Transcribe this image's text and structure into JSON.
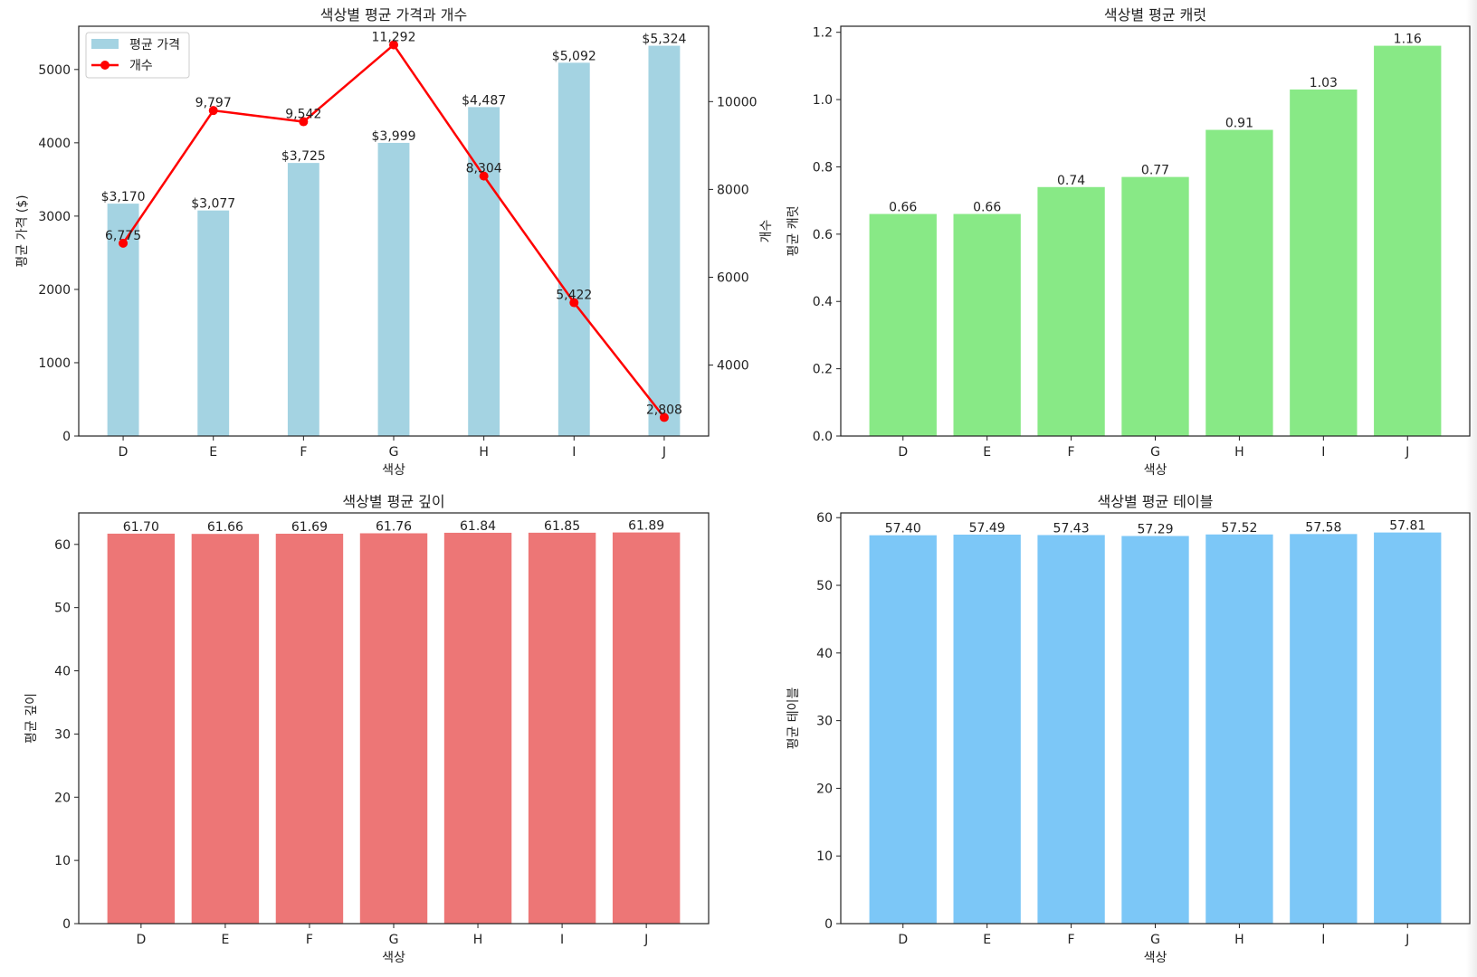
{
  "chart_data": [
    {
      "type": "bar+line",
      "title": "색상별 평균 가격과 개수",
      "xlabel": "색상",
      "ylabel": "평균 가격 ($)",
      "y2label": "개수",
      "categories": [
        "D",
        "E",
        "F",
        "G",
        "H",
        "I",
        "J"
      ],
      "series": [
        {
          "name": "평균 가격",
          "type": "bar",
          "axis": "left",
          "color": "#a4d3e2",
          "values": [
            3170,
            3077,
            3725,
            3999,
            4487,
            5092,
            5324
          ],
          "labels": [
            "$3,170",
            "$3,077",
            "$3,725",
            "$3,999",
            "$4,487",
            "$5,092",
            "$5,324"
          ]
        },
        {
          "name": "개수",
          "type": "line",
          "axis": "right",
          "color": "#ff0000",
          "marker": "circle",
          "values": [
            6775,
            9797,
            9542,
            11292,
            8304,
            5422,
            2808
          ],
          "labels": [
            "6,775",
            "9,797",
            "9,542",
            "11,292",
            "8,304",
            "5,422",
            "2,808"
          ]
        }
      ],
      "ylim": [
        0,
        5590
      ],
      "yticks": [
        0,
        1000,
        2000,
        3000,
        4000,
        5000
      ],
      "y2lim": [
        2384,
        11716
      ],
      "y2ticks": [
        4000,
        6000,
        8000,
        10000
      ],
      "legend": "top-left",
      "grid": false
    },
    {
      "type": "bar",
      "title": "색상별 평균 캐럿",
      "xlabel": "색상",
      "ylabel": "평균 캐럿",
      "categories": [
        "D",
        "E",
        "F",
        "G",
        "H",
        "I",
        "J"
      ],
      "values": [
        0.66,
        0.66,
        0.74,
        0.77,
        0.91,
        1.03,
        1.16
      ],
      "labels": [
        "0.66",
        "0.66",
        "0.74",
        "0.77",
        "0.91",
        "1.03",
        "1.16"
      ],
      "color": "#88e986",
      "ylim": [
        0,
        1.218
      ],
      "yticks": [
        0.0,
        0.2,
        0.4,
        0.6,
        0.8,
        1.0,
        1.2
      ],
      "ytick_labels": [
        "0.0",
        "0.2",
        "0.4",
        "0.6",
        "0.8",
        "1.0",
        "1.2"
      ],
      "grid": false
    },
    {
      "type": "bar",
      "title": "색상별 평균 깊이",
      "xlabel": "색상",
      "ylabel": "평균 깊이",
      "categories": [
        "D",
        "E",
        "F",
        "G",
        "H",
        "I",
        "J"
      ],
      "values": [
        61.7,
        61.66,
        61.69,
        61.76,
        61.84,
        61.85,
        61.89
      ],
      "labels": [
        "61.70",
        "61.66",
        "61.69",
        "61.76",
        "61.84",
        "61.85",
        "61.89"
      ],
      "color": "#ed7676",
      "ylim": [
        0,
        64.98
      ],
      "yticks": [
        0,
        10,
        20,
        30,
        40,
        50,
        60
      ],
      "grid": false
    },
    {
      "type": "bar",
      "title": "색상별 평균 테이블",
      "xlabel": "색상",
      "ylabel": "평균 테이블",
      "categories": [
        "D",
        "E",
        "F",
        "G",
        "H",
        "I",
        "J"
      ],
      "values": [
        57.4,
        57.49,
        57.43,
        57.29,
        57.52,
        57.58,
        57.81
      ],
      "labels": [
        "57.40",
        "57.49",
        "57.43",
        "57.29",
        "57.52",
        "57.58",
        "57.81"
      ],
      "color": "#7cc7f7",
      "ylim": [
        0,
        60.7
      ],
      "yticks": [
        0,
        10,
        20,
        30,
        40,
        50,
        60
      ],
      "grid": false
    }
  ]
}
